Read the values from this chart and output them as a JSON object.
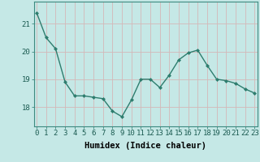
{
  "x": [
    0,
    1,
    2,
    3,
    4,
    5,
    6,
    7,
    8,
    9,
    10,
    11,
    12,
    13,
    14,
    15,
    16,
    17,
    18,
    19,
    20,
    21,
    22,
    23
  ],
  "y": [
    21.4,
    20.5,
    20.1,
    18.9,
    18.4,
    18.4,
    18.35,
    18.3,
    17.85,
    17.65,
    18.25,
    19.0,
    19.0,
    18.7,
    19.15,
    19.7,
    19.95,
    20.05,
    19.5,
    19.0,
    18.95,
    18.85,
    18.65,
    18.5
  ],
  "line_color": "#2e7d6e",
  "marker": "D",
  "marker_size": 2.0,
  "bg_color": "#c5e8e6",
  "grid_color": "#b8d8d6",
  "xlabel": "Humidex (Indice chaleur)",
  "yticks": [
    18,
    19,
    20,
    21
  ],
  "xticks": [
    0,
    1,
    2,
    3,
    4,
    5,
    6,
    7,
    8,
    9,
    10,
    11,
    12,
    13,
    14,
    15,
    16,
    17,
    18,
    19,
    20,
    21,
    22,
    23
  ],
  "xlim": [
    -0.3,
    23.3
  ],
  "ylim": [
    17.3,
    21.8
  ],
  "xlabel_fontsize": 7.5,
  "tick_fontsize": 6.5,
  "line_width": 1.0
}
